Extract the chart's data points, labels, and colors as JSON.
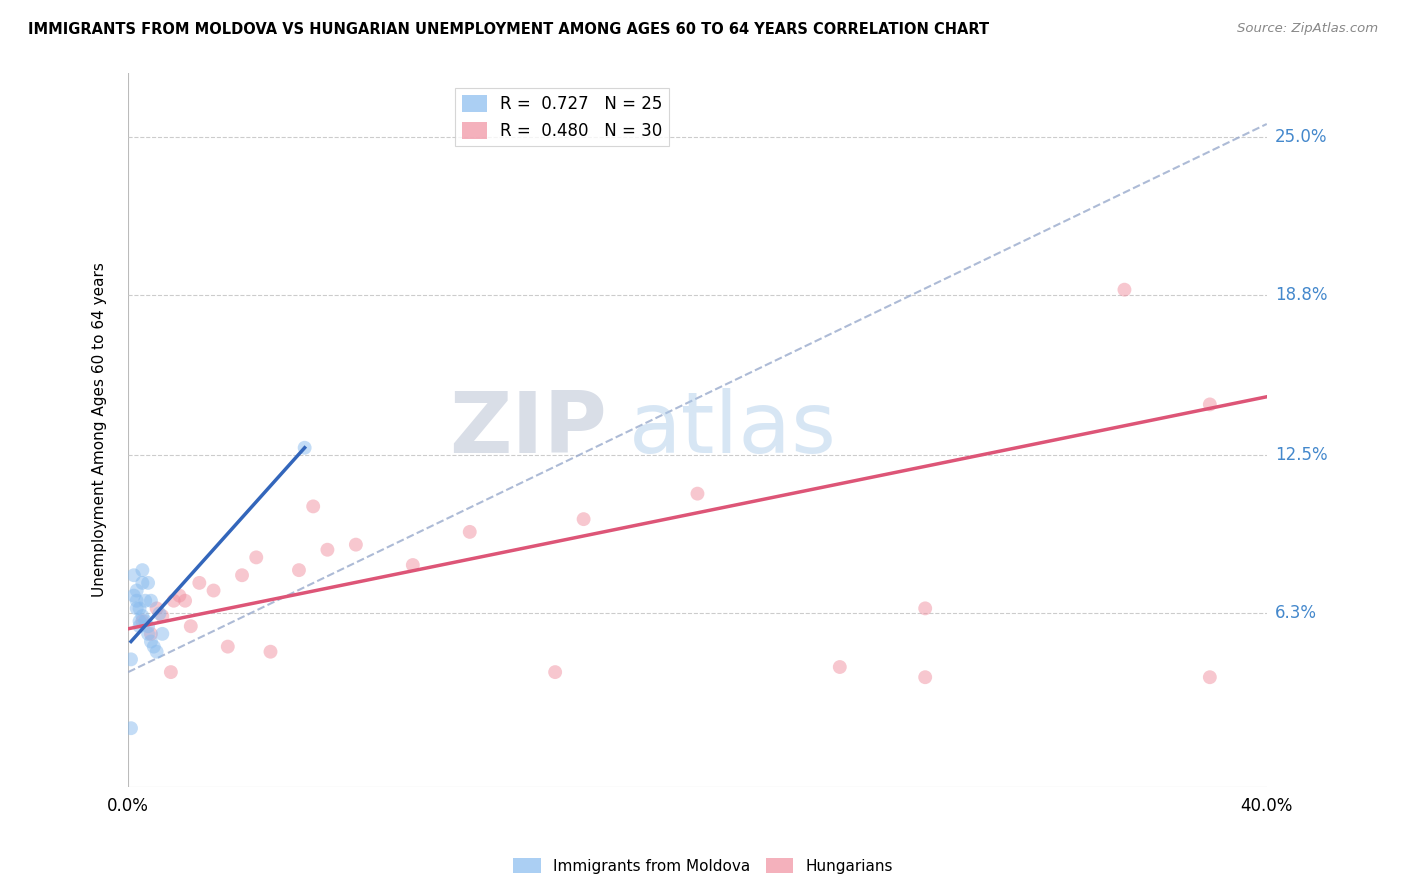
{
  "title": "IMMIGRANTS FROM MOLDOVA VS HUNGARIAN UNEMPLOYMENT AMONG AGES 60 TO 64 YEARS CORRELATION CHART",
  "source": "Source: ZipAtlas.com",
  "ylabel": "Unemployment Among Ages 60 to 64 years",
  "ytick_labels": [
    "6.3%",
    "12.5%",
    "18.8%",
    "25.0%"
  ],
  "ytick_values": [
    0.063,
    0.125,
    0.188,
    0.25
  ],
  "xlim": [
    0.0,
    0.4
  ],
  "ylim": [
    -0.005,
    0.275
  ],
  "watermark_zip": "ZIP",
  "watermark_atlas": "atlas",
  "legend_line1": "R =  0.727   N = 25",
  "legend_line2": "R =  0.480   N = 30",
  "moldova_scatter_x": [
    0.001,
    0.002,
    0.002,
    0.003,
    0.003,
    0.003,
    0.004,
    0.004,
    0.004,
    0.005,
    0.005,
    0.005,
    0.006,
    0.006,
    0.007,
    0.007,
    0.007,
    0.008,
    0.008,
    0.009,
    0.01,
    0.011,
    0.012,
    0.062,
    0.001
  ],
  "moldova_scatter_y": [
    0.045,
    0.07,
    0.078,
    0.065,
    0.068,
    0.072,
    0.06,
    0.065,
    0.058,
    0.062,
    0.075,
    0.08,
    0.06,
    0.068,
    0.055,
    0.058,
    0.075,
    0.052,
    0.068,
    0.05,
    0.048,
    0.063,
    0.055,
    0.128,
    0.018
  ],
  "hungarian_scatter_x": [
    0.005,
    0.008,
    0.01,
    0.012,
    0.015,
    0.016,
    0.018,
    0.02,
    0.022,
    0.025,
    0.03,
    0.035,
    0.04,
    0.045,
    0.05,
    0.06,
    0.065,
    0.07,
    0.08,
    0.1,
    0.12,
    0.15,
    0.16,
    0.2,
    0.25,
    0.28,
    0.35,
    0.38,
    0.38,
    0.28
  ],
  "hungarian_scatter_y": [
    0.06,
    0.055,
    0.065,
    0.062,
    0.04,
    0.068,
    0.07,
    0.068,
    0.058,
    0.075,
    0.072,
    0.05,
    0.078,
    0.085,
    0.048,
    0.08,
    0.105,
    0.088,
    0.09,
    0.082,
    0.095,
    0.04,
    0.1,
    0.11,
    0.042,
    0.065,
    0.19,
    0.145,
    0.038,
    0.038
  ],
  "moldova_trendline_x": [
    0.001,
    0.062
  ],
  "moldova_trendline_y": [
    0.052,
    0.128
  ],
  "dashed_trendline_x": [
    0.0,
    0.4
  ],
  "dashed_trendline_y": [
    0.04,
    0.255
  ],
  "hungarian_trendline_x": [
    0.0,
    0.4
  ],
  "hungarian_trendline_y": [
    0.057,
    0.148
  ],
  "scatter_alpha": 0.5,
  "scatter_size": 100,
  "grid_color": "#cccccc",
  "background_color": "#ffffff",
  "blue_color": "#88bbee",
  "pink_color": "#f090a0",
  "blue_line_color": "#3366bb",
  "pink_line_color": "#dd5577",
  "dashed_line_color": "#99aacc",
  "ytick_color": "#4488cc",
  "xtick_positions": [
    0.0,
    0.1,
    0.2,
    0.3,
    0.4
  ],
  "xtick_labels": [
    "0.0%",
    "",
    "",
    "",
    "40.0%"
  ]
}
